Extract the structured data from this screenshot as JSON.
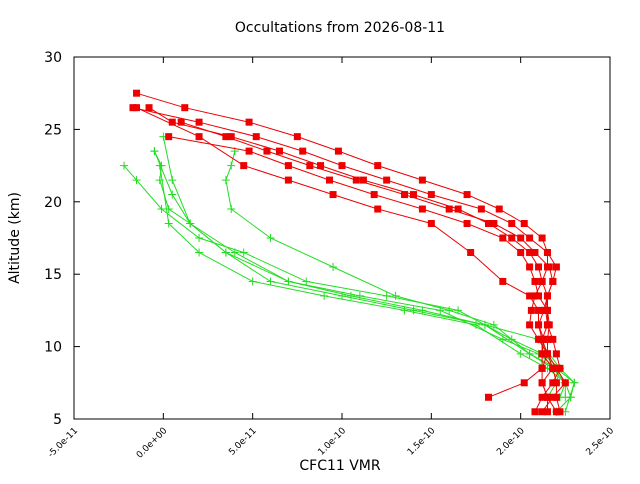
{
  "chart_data": {
    "type": "line",
    "title": "Occultations from 2026-08-11",
    "xlabel": "CFC11 VMR",
    "ylabel": "Altitude (km)",
    "xlim": [
      -5e-11,
      2.5e-10
    ],
    "ylim": [
      5,
      30
    ],
    "xticks": [
      -5e-11,
      0,
      5e-11,
      1e-10,
      1.5e-10,
      2e-10,
      2.5e-10
    ],
    "xtick_labels": [
      "-5.0e-11",
      "0.0e+00",
      "5.0e-11",
      "1.0e-10",
      "1.5e-10",
      "2.0e-10",
      "2.5e-10"
    ],
    "yticks": [
      5,
      10,
      15,
      20,
      25,
      30
    ],
    "ytick_labels": [
      "5",
      "10",
      "15",
      "20",
      "25",
      "30"
    ],
    "grid": false,
    "colors": {
      "red": "#ee0000",
      "green": "#22dd22",
      "frame": "#000000"
    },
    "series": [
      {
        "color": "red",
        "marker": "square",
        "x": [
          2.15e-10,
          2.15e-10,
          2.12e-10,
          2.12e-10,
          2.12e-10,
          2.13e-10,
          2.1e-10,
          2.1e-10,
          2.05e-10,
          1.9e-10,
          1.72e-10,
          1.5e-10,
          1.2e-10,
          9.5e-11,
          7e-11,
          4.5e-11,
          2e-11,
          -1.5e-11
        ],
        "y": [
          5.5,
          6.5,
          7.5,
          8.5,
          9.5,
          10.5,
          11.5,
          12.5,
          13.5,
          14.5,
          16.5,
          18.5,
          19.5,
          20.5,
          21.5,
          22.5,
          24.5,
          26.5
        ]
      },
      {
        "color": "red",
        "marker": "square",
        "x": [
          2.22e-10,
          2.2e-10,
          2.2e-10,
          2.18e-10,
          2.15e-10,
          2.15e-10,
          2.16e-10,
          2.15e-10,
          2.15e-10,
          2.12e-10,
          2.1e-10,
          2.05e-10,
          1.95e-10,
          1.82e-10,
          1.65e-10,
          1.4e-10,
          1.12e-10,
          8.8e-11,
          6.5e-11,
          3.8e-11,
          5e-12,
          -8e-12
        ],
        "y": [
          5.5,
          6.5,
          7.5,
          8.5,
          9.5,
          10.5,
          11.5,
          12.5,
          13.5,
          14.5,
          15.5,
          16.5,
          17.5,
          18.5,
          19.5,
          20.5,
          21.5,
          22.5,
          23.5,
          24.5,
          25.5,
          26.5
        ]
      },
      {
        "color": "red",
        "marker": "square",
        "x": [
          2.2e-10,
          2.15e-10,
          2.12e-10,
          2.18e-10,
          2.12e-10,
          2.12e-10,
          2.1e-10,
          2.13e-10,
          2.15e-10,
          2.18e-10,
          2.2e-10,
          2.15e-10,
          2.05e-10,
          1.95e-10,
          1.78e-10,
          1.5e-10,
          1.25e-10,
          1e-10,
          7.8e-11,
          5.2e-11,
          2e-11,
          -1.7e-11
        ],
        "y": [
          5.5,
          6.5,
          7.5,
          8.5,
          9.5,
          10.5,
          11.5,
          12.5,
          13.5,
          14.5,
          15.5,
          16.5,
          17.5,
          18.5,
          19.5,
          20.5,
          21.5,
          22.5,
          23.5,
          24.5,
          25.5,
          26.5
        ]
      },
      {
        "color": "red",
        "marker": "square",
        "x": [
          2.12e-10,
          2.18e-10,
          2.25e-10,
          2.2e-10,
          2.15e-10,
          2.12e-10,
          2.15e-10,
          2.15e-10,
          2.1e-10,
          2.08e-10,
          2.05e-10,
          2e-10,
          1.9e-10,
          1.7e-10,
          1.45e-10,
          1.18e-10,
          9.3e-11,
          7e-11,
          4.8e-11,
          3e-12
        ],
        "y": [
          5.5,
          6.5,
          7.5,
          8.5,
          9.5,
          10.5,
          11.5,
          12.5,
          13.5,
          14.5,
          15.5,
          16.5,
          17.5,
          18.5,
          19.5,
          20.5,
          21.5,
          22.5,
          23.5,
          24.5
        ]
      },
      {
        "color": "red",
        "marker": "square",
        "x": [
          2.08e-10,
          2.12e-10,
          2.18e-10,
          2.22e-10,
          2.2e-10,
          2.18e-10,
          2.15e-10,
          2.14e-10,
          2.15e-10,
          2.18e-10,
          2.16e-10,
          2.08e-10,
          2e-10,
          1.85e-10,
          1.6e-10,
          1.35e-10,
          1.08e-10,
          8.2e-11,
          5.8e-11,
          3.5e-11,
          1e-11
        ],
        "y": [
          5.5,
          6.5,
          7.5,
          8.5,
          9.5,
          10.5,
          11.5,
          12.5,
          13.5,
          14.5,
          15.5,
          16.5,
          17.5,
          18.5,
          19.5,
          20.5,
          21.5,
          22.5,
          23.5,
          24.5,
          25.5
        ]
      },
      {
        "color": "red",
        "marker": "square",
        "x": [
          1.82e-10,
          2.02e-10,
          2.12e-10,
          2.15e-10,
          2.1e-10,
          2.05e-10,
          2.06e-10,
          2.08e-10,
          2.12e-10,
          2.15e-10,
          2.15e-10,
          2.12e-10,
          2.02e-10,
          1.88e-10,
          1.7e-10,
          1.45e-10,
          1.2e-10,
          9.8e-11,
          7.5e-11,
          4.8e-11,
          1.2e-11,
          -1.5e-11
        ],
        "y": [
          6.5,
          7.5,
          8.5,
          9.5,
          10.5,
          11.5,
          12.5,
          13.5,
          14.5,
          15.5,
          16.5,
          17.5,
          18.5,
          19.5,
          20.5,
          21.5,
          22.5,
          23.5,
          24.5,
          25.5,
          26.5,
          27.5
        ]
      }
    ],
    "series_green": [
      {
        "color": "green",
        "marker": "plus",
        "x": [
          2.2e-10,
          2.28e-10,
          2.3e-10,
          2.22e-10,
          2.1e-10,
          1.8e-10,
          1.4e-10,
          1e-10,
          6e-11,
          3.5e-11,
          1.5e-11,
          5e-12,
          0
        ],
        "y": [
          5.5,
          6.5,
          7.5,
          8.5,
          10.5,
          11.5,
          12.5,
          13.5,
          14.5,
          16.5,
          18.5,
          21.5,
          24.5
        ]
      },
      {
        "color": "green",
        "marker": "plus",
        "x": [
          2.25e-10,
          2.25e-10,
          2.2e-10,
          2.1e-10,
          1.9e-10,
          1.55e-10,
          1.1e-10,
          7e-11,
          3.5e-11,
          1.5e-11,
          5e-12,
          -5e-12
        ],
        "y": [
          6.5,
          7.5,
          8.5,
          9.5,
          10.5,
          12.5,
          13.5,
          14.5,
          16.5,
          18.5,
          20.5,
          23.5
        ]
      },
      {
        "color": "green",
        "marker": "plus",
        "x": [
          2.2e-10,
          2.28e-10,
          2.25e-10,
          2.15e-10,
          2e-10,
          1.75e-10,
          1.35e-10,
          9e-11,
          5e-11,
          2e-11,
          3e-12,
          -2e-12
        ],
        "y": [
          5.5,
          6.5,
          7.5,
          8.5,
          9.5,
          11.5,
          12.5,
          13.5,
          14.5,
          16.5,
          18.5,
          22.5
        ]
      },
      {
        "color": "green",
        "marker": "plus",
        "x": [
          2.15e-10,
          2.2e-10,
          2.22e-10,
          2.12e-10,
          1.95e-10,
          1.65e-10,
          1.25e-10,
          8e-11,
          4.5e-11,
          2e-11,
          -1e-12,
          -1.5e-11,
          -2.2e-11
        ],
        "y": [
          6.5,
          7.5,
          8.5,
          9.5,
          10.5,
          12.5,
          13.5,
          14.5,
          16.5,
          17.5,
          19.5,
          21.5,
          22.5
        ]
      },
      {
        "color": "green",
        "marker": "plus",
        "x": [
          2.25e-10,
          2.3e-10,
          2.2e-10,
          2.05e-10,
          1.8e-10,
          1.45e-10,
          1.05e-10,
          7e-11,
          4e-11,
          1.5e-11,
          3e-12,
          -2e-12,
          -1e-12,
          -5e-12
        ],
        "y": [
          5.5,
          7.5,
          8.5,
          9.5,
          11.5,
          12.5,
          13.5,
          14.5,
          16.5,
          18.5,
          19.5,
          21.5,
          22.5,
          23.5
        ]
      },
      {
        "color": "green",
        "marker": "plus",
        "x": [
          2.22e-10,
          2.25e-10,
          2.18e-10,
          2.05e-10,
          1.85e-10,
          1.6e-10,
          1.3e-10,
          9.5e-11,
          6e-11,
          3.8e-11,
          3.5e-11,
          3.8e-11,
          4e-11
        ],
        "y": [
          6.5,
          7.5,
          8.5,
          9.5,
          11.5,
          12.5,
          13.5,
          15.5,
          17.5,
          19.5,
          21.5,
          22.5,
          23.5
        ]
      }
    ]
  }
}
